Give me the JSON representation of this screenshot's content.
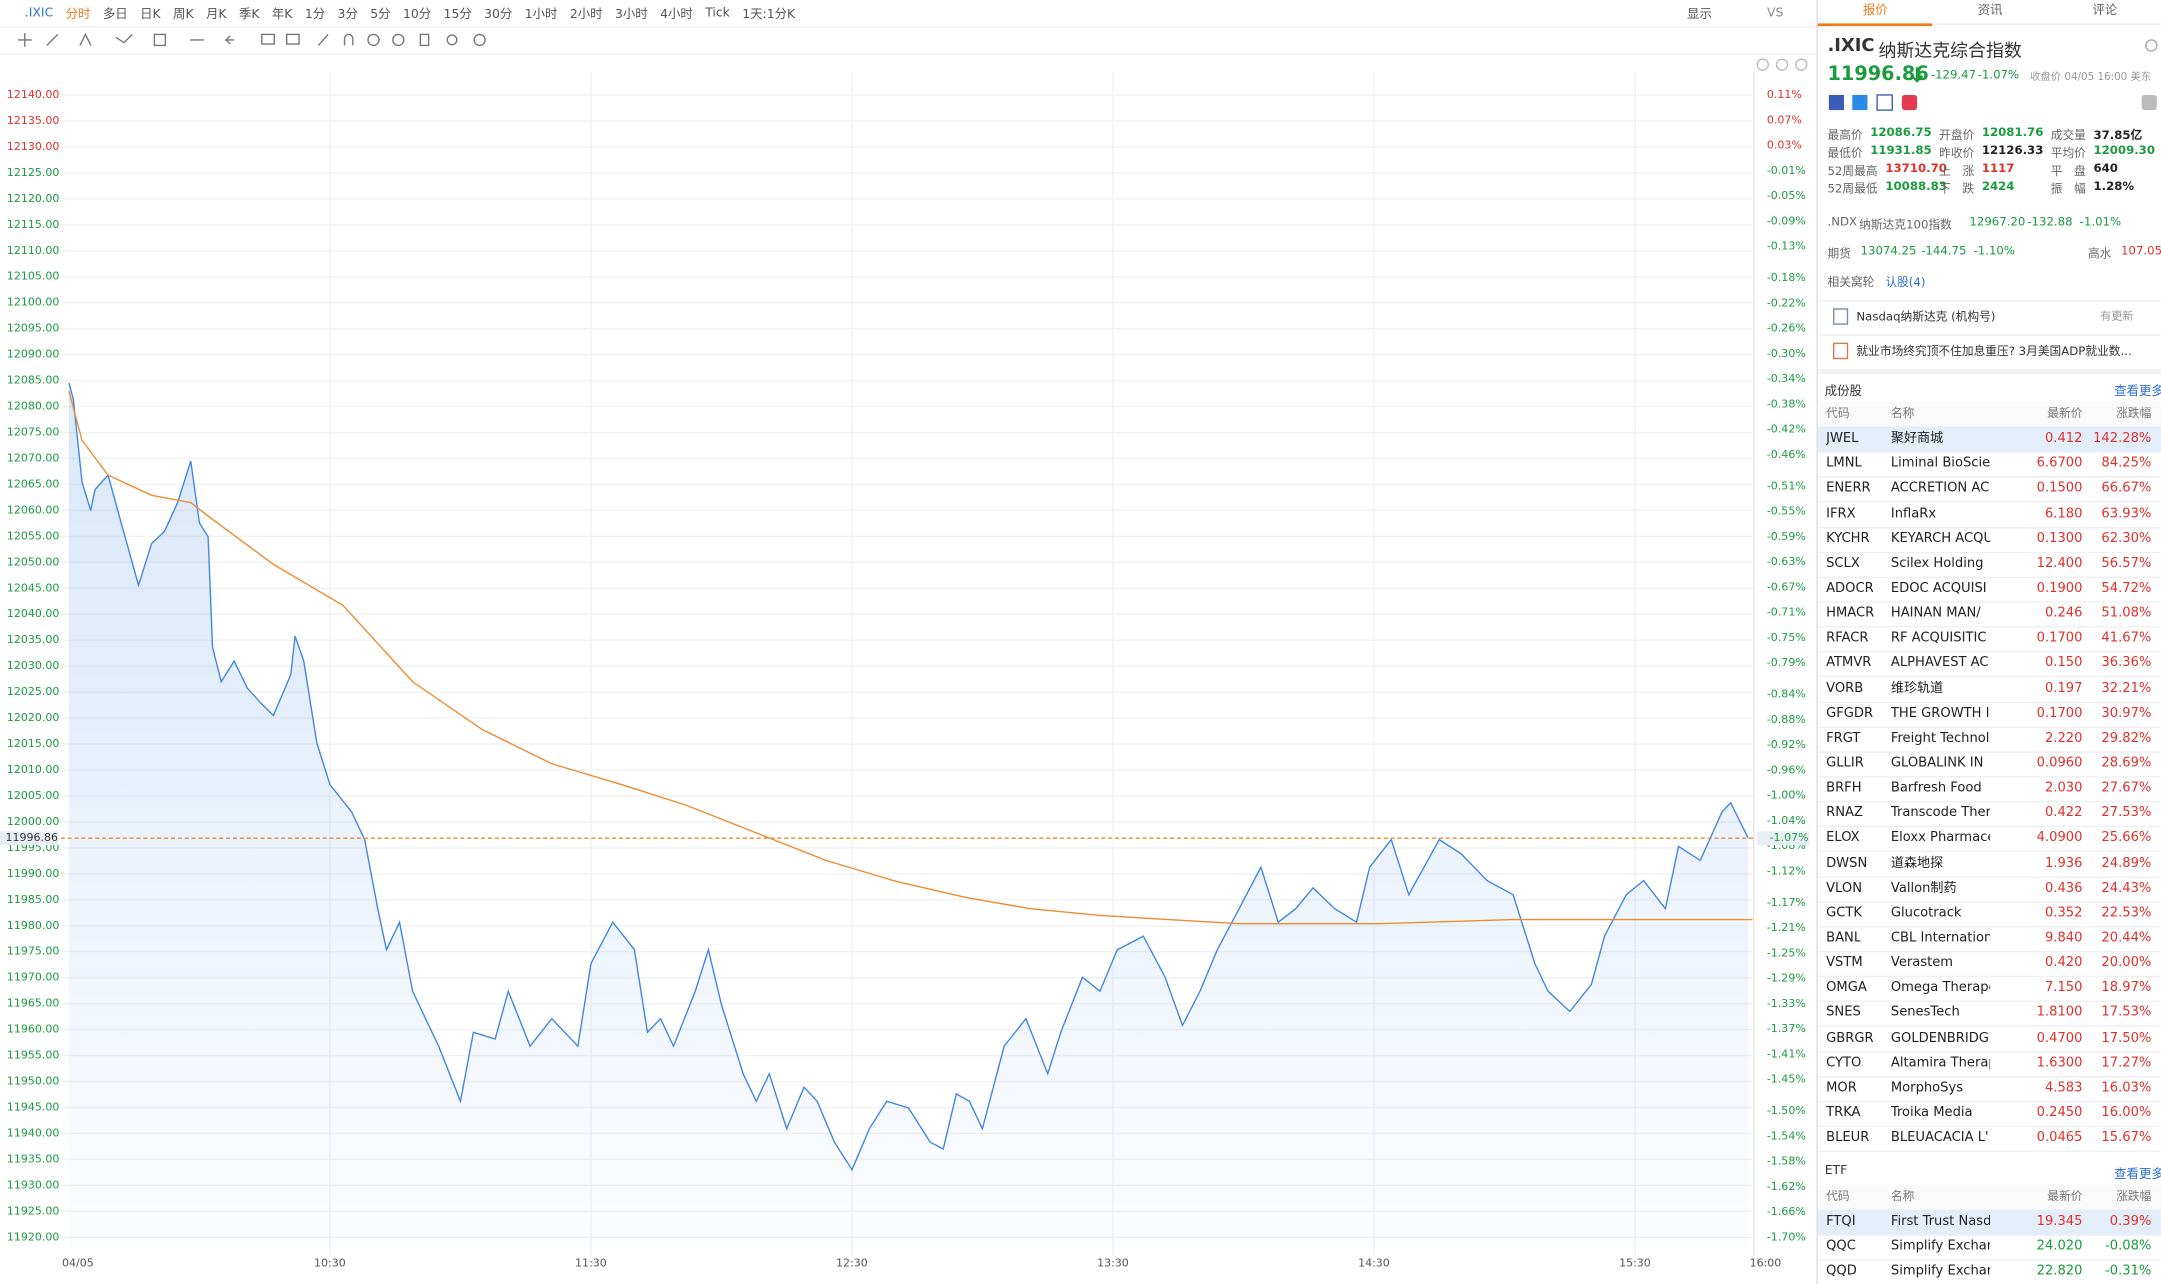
{
  "toolbar": {
    "symbol": ".IXIC",
    "periods": [
      "分时",
      "多日",
      "日K",
      "周K",
      "月K",
      "季K",
      "年K",
      "1分",
      "3分",
      "5分",
      "10分",
      "15分",
      "30分",
      "1小时",
      "2小时",
      "3小时",
      "4小时",
      "Tick"
    ],
    "active": 0,
    "kline_setting": "1天:1分K",
    "display": "显示",
    "vs": "VS"
  },
  "chart_data": {
    "type": "line",
    "xlim": [
      0,
      390
    ],
    "xticks": [
      {
        "value": 0,
        "label": "04/05"
      },
      {
        "value": 60,
        "label": "10:30"
      },
      {
        "value": 120,
        "label": "11:30"
      },
      {
        "value": 180,
        "label": "12:30"
      },
      {
        "value": 240,
        "label": "13:30"
      },
      {
        "value": 300,
        "label": "14:30"
      },
      {
        "value": 360,
        "label": "15:30"
      },
      {
        "value": 390,
        "label": "16:00"
      }
    ],
    "ylim": [
      11917.9,
      12142.4
    ],
    "yticks": [
      {
        "value": 12140,
        "label": "12140.00"
      },
      {
        "value": 12135,
        "label": "12135.00"
      },
      {
        "value": 12130,
        "label": "12130.00"
      },
      {
        "value": 12125,
        "label": "12125.00"
      },
      {
        "value": 12120,
        "label": "12120.00"
      },
      {
        "value": 12115,
        "label": "12115.00"
      },
      {
        "value": 12110,
        "label": "12110.00"
      },
      {
        "value": 12105,
        "label": "12105.00"
      },
      {
        "value": 12100,
        "label": "12100.00"
      },
      {
        "value": 12095,
        "label": "12095.00"
      },
      {
        "value": 12090,
        "label": "12090.00"
      },
      {
        "value": 12085,
        "label": "12085.00"
      },
      {
        "value": 12080,
        "label": "12080.00"
      },
      {
        "value": 12075,
        "label": "12075.00"
      },
      {
        "value": 12070,
        "label": "12070.00"
      },
      {
        "value": 12065,
        "label": "12065.00"
      },
      {
        "value": 12060,
        "label": "12060.00"
      },
      {
        "value": 12055,
        "label": "12055.00"
      },
      {
        "value": 12050,
        "label": "12050.00"
      },
      {
        "value": 12045,
        "label": "12045.00"
      },
      {
        "value": 12040,
        "label": "12040.00"
      },
      {
        "value": 12035,
        "label": "12035.00"
      },
      {
        "value": 12030,
        "label": "12030.00"
      },
      {
        "value": 12025,
        "label": "12025.00"
      },
      {
        "value": 12020,
        "label": "12020.00"
      },
      {
        "value": 12015,
        "label": "12015.00"
      },
      {
        "value": 12010,
        "label": "12010.00"
      },
      {
        "value": 12005,
        "label": "12005.00"
      },
      {
        "value": 12000,
        "label": "12000.00"
      },
      {
        "value": 11995,
        "label": "11995.00"
      },
      {
        "value": 11990,
        "label": "11990.00"
      },
      {
        "value": 11985,
        "label": "11985.00"
      },
      {
        "value": 11980,
        "label": "11980.00"
      },
      {
        "value": 11975,
        "label": "11975.00"
      },
      {
        "value": 11970,
        "label": "11970.00"
      },
      {
        "value": 11965,
        "label": "11965.00"
      },
      {
        "value": 11960,
        "label": "11960.00"
      },
      {
        "value": 11955,
        "label": "11955.00"
      },
      {
        "value": 11950,
        "label": "11950.00"
      },
      {
        "value": 11945,
        "label": "11945.00"
      },
      {
        "value": 11940,
        "label": "11940.00"
      },
      {
        "value": 11935,
        "label": "11935.00"
      },
      {
        "value": 11930,
        "label": "11930.00"
      },
      {
        "value": 11925,
        "label": "11925.00"
      },
      {
        "value": 11920,
        "label": "11920.00"
      }
    ],
    "y2lim": [
      -1.717,
      0.13
    ],
    "y2ticks": [
      {
        "value": 0.11,
        "label": "0.11%"
      },
      {
        "value": 0.07,
        "label": "0.07%"
      },
      {
        "value": 0.03,
        "label": "0.03%"
      },
      {
        "value": -0.01,
        "label": "-0.01%"
      },
      {
        "value": -0.05,
        "label": "-0.05%"
      },
      {
        "value": -0.09,
        "label": "-0.09%"
      },
      {
        "value": -0.13,
        "label": "-0.13%"
      },
      {
        "value": -0.18,
        "label": "-0.18%"
      },
      {
        "value": -0.22,
        "label": "-0.22%"
      },
      {
        "value": -0.26,
        "label": "-0.26%"
      },
      {
        "value": -0.3,
        "label": "-0.30%"
      },
      {
        "value": -0.34,
        "label": "-0.34%"
      },
      {
        "value": -0.38,
        "label": "-0.38%"
      },
      {
        "value": -0.42,
        "label": "-0.42%"
      },
      {
        "value": -0.46,
        "label": "-0.46%"
      },
      {
        "value": -0.51,
        "label": "-0.51%"
      },
      {
        "value": -0.55,
        "label": "-0.55%"
      },
      {
        "value": -0.59,
        "label": "-0.59%"
      },
      {
        "value": -0.63,
        "label": "-0.63%"
      },
      {
        "value": -0.67,
        "label": "-0.67%"
      },
      {
        "value": -0.71,
        "label": "-0.71%"
      },
      {
        "value": -0.75,
        "label": "-0.75%"
      },
      {
        "value": -0.79,
        "label": "-0.79%"
      },
      {
        "value": -0.84,
        "label": "-0.84%"
      },
      {
        "value": -0.88,
        "label": "-0.88%"
      },
      {
        "value": -0.92,
        "label": "-0.92%"
      },
      {
        "value": -0.96,
        "label": "-0.96%"
      },
      {
        "value": -1.0,
        "label": "-1.00%"
      },
      {
        "value": -1.04,
        "label": "-1.04%"
      },
      {
        "value": -1.08,
        "label": "-1.08%"
      },
      {
        "value": -1.12,
        "label": "-1.12%"
      },
      {
        "value": -1.17,
        "label": "-1.17%"
      },
      {
        "value": -1.21,
        "label": "-1.21%"
      },
      {
        "value": -1.25,
        "label": "-1.25%"
      },
      {
        "value": -1.29,
        "label": "-1.29%"
      },
      {
        "value": -1.33,
        "label": "-1.33%"
      },
      {
        "value": -1.37,
        "label": "-1.37%"
      },
      {
        "value": -1.41,
        "label": "-1.41%"
      },
      {
        "value": -1.45,
        "label": "-1.45%"
      },
      {
        "value": -1.5,
        "label": "-1.50%"
      },
      {
        "value": -1.54,
        "label": "-1.54%"
      },
      {
        "value": -1.58,
        "label": "-1.58%"
      },
      {
        "value": -1.62,
        "label": "-1.62%"
      },
      {
        "value": -1.66,
        "label": "-1.66%"
      },
      {
        "value": -1.7,
        "label": "-1.70%"
      }
    ],
    "grid": true,
    "series": [
      {
        "color": "#3f86e3",
        "fill": true,
        "x": [
          0,
          1,
          3,
          5,
          6,
          9,
          12,
          16,
          19,
          22,
          25,
          28,
          30,
          32,
          33,
          35,
          38,
          41,
          44,
          47,
          51,
          52,
          54,
          57,
          60,
          65,
          68,
          71,
          73,
          76,
          79,
          82,
          85,
          90,
          93,
          98,
          101,
          106,
          111,
          117,
          120,
          125,
          130,
          133,
          136,
          139,
          144,
          147,
          150,
          155,
          158,
          161,
          165,
          169,
          172,
          176,
          180,
          184,
          188,
          193,
          198,
          201,
          204,
          207,
          210,
          215,
          220,
          225,
          228,
          233,
          237,
          241,
          247,
          252,
          256,
          260,
          264,
          269,
          274,
          278,
          282,
          286,
          291,
          296,
          299,
          304,
          308,
          315,
          320,
          326,
          332,
          337,
          340,
          345,
          350,
          353,
          358,
          362,
          367,
          370,
          375,
          380,
          382,
          386
        ],
        "values": [
          12084.6,
          12081.4,
          12065.5,
          12060.0,
          12064.0,
          12066.8,
          12057.6,
          12045.6,
          12053.6,
          12056.0,
          12061.5,
          12069.5,
          12057.6,
          12054.9,
          12033.7,
          12027.0,
          12031.0,
          12025.8,
          12023.0,
          12020.5,
          12028.4,
          12035.8,
          12031.0,
          12015.2,
          12007.2,
          12001.9,
          11996.6,
          11983.3,
          11975.4,
          11980.7,
          11967.4,
          11962.1,
          11956.8,
          11946.2,
          11959.5,
          11958.2,
          11967.4,
          11956.8,
          11962.1,
          11956.8,
          11972.7,
          11980.7,
          11975.4,
          11959.5,
          11962.1,
          11956.8,
          11967.4,
          11975.4,
          11964.8,
          11951.5,
          11946.2,
          11951.5,
          11940.9,
          11948.9,
          11946.2,
          11938.3,
          11933.0,
          11940.9,
          11946.2,
          11944.9,
          11938.3,
          11937.0,
          11947.6,
          11946.2,
          11940.9,
          11956.8,
          11962.1,
          11951.5,
          11959.5,
          11970.1,
          11967.4,
          11975.4,
          11978.0,
          11970.1,
          11960.8,
          11967.4,
          11975.4,
          11983.3,
          11991.3,
          11980.7,
          11983.3,
          11987.3,
          11983.3,
          11980.7,
          11991.3,
          11996.6,
          11986.0,
          11996.6,
          11993.9,
          11988.7,
          11986.0,
          11972.7,
          11967.4,
          11963.5,
          11968.7,
          11978.0,
          11986.0,
          11988.7,
          11983.3,
          11995.3,
          11992.6,
          12001.9,
          12003.7,
          11996.9
        ]
      },
      {
        "color": "#f08a2e",
        "fill": false,
        "x": [
          0,
          3,
          9,
          19,
          28,
          32,
          47,
          63,
          79,
          95,
          111,
          127,
          142,
          158,
          174,
          190,
          206,
          221,
          237,
          269,
          301,
          332,
          387
        ],
        "values": [
          12083.0,
          12073.5,
          12066.8,
          12062.9,
          12061.5,
          12058.9,
          12049.6,
          12041.7,
          12027.0,
          12017.8,
          12011.2,
          12007.2,
          12003.2,
          11997.9,
          11992.6,
          11988.6,
          11985.5,
          11983.3,
          11982.0,
          11980.4,
          11980.4,
          11981.2,
          11981.2
        ]
      }
    ],
    "price_line": 11996.86,
    "price_line_pct": "-1.07%"
  },
  "quote": {
    "tabs": [
      "报价",
      "资讯",
      "评论"
    ],
    "active": 0,
    "code": ".IXIC",
    "name": "纳斯达克综合指数",
    "price": "11996.86",
    "change": "-129.47",
    "change_pct": "-1.07%",
    "status": "收盘价 04/05 16:00 美东",
    "stats": [
      {
        "label": "最高价",
        "value": "12086.75",
        "color": "green"
      },
      {
        "label": "开盘价",
        "value": "12081.76",
        "color": "green"
      },
      {
        "label": "成交量",
        "value": "37.85亿",
        "color": "black"
      },
      {
        "label": "最低价",
        "value": "11931.85",
        "color": "green"
      },
      {
        "label": "昨收价",
        "value": "12126.33",
        "color": "black"
      },
      {
        "label": "平均价",
        "value": "12009.30",
        "color": "green"
      },
      {
        "label": "52周最高",
        "value": "13710.70",
        "color": "red"
      },
      {
        "label": "上　涨",
        "value": "1117",
        "color": "red"
      },
      {
        "label": "平　盘",
        "value": "640",
        "color": "black"
      },
      {
        "label": "52周最低",
        "value": "10088.83",
        "color": "green"
      },
      {
        "label": "下　跌",
        "value": "2424",
        "color": "green"
      },
      {
        "label": "振　幅",
        "value": "1.28%",
        "color": "black"
      }
    ],
    "ndx": {
      "code": ".NDX",
      "name": "纳斯达克100指数",
      "price": "12967.20",
      "change": "-132.88",
      "change_pct": "-1.01%"
    },
    "futures": {
      "label": "期货",
      "price": "13074.25",
      "change": "-144.75",
      "change_pct": "-1.10%",
      "premium_label": "高水",
      "premium": "107.05"
    },
    "warrants": {
      "label": "相关窝轮",
      "link": "认股(4)"
    },
    "news": [
      {
        "text": "Nasdaq纳斯达克 (机构号)",
        "tag": "有更新"
      },
      {
        "text": "就业市场终究顶不住加息重压? 3月美国ADP就业数..."
      }
    ]
  },
  "constituents": {
    "title": "成份股",
    "more": "查看更多",
    "columns": [
      "代码",
      "名称",
      "最新价",
      "涨跌幅"
    ],
    "selected": 0,
    "rows": [
      [
        "JWEL",
        "聚好商城",
        "0.412",
        "142.28%"
      ],
      [
        "LMNL",
        "Liminal BioScier",
        "6.6700",
        "84.25%"
      ],
      [
        "ENERR",
        "ACCRETION AC",
        "0.1500",
        "66.67%"
      ],
      [
        "IFRX",
        "InflaRx",
        "6.180",
        "63.93%"
      ],
      [
        "KYCHR",
        "KEYARCH ACQU",
        "0.1300",
        "62.30%"
      ],
      [
        "SCLX",
        "Scilex Holding",
        "12.400",
        "56.57%"
      ],
      [
        "ADOCR",
        "EDOC ACQUISI",
        "0.1900",
        "54.72%"
      ],
      [
        "HMACR",
        "HAINAN MAN/",
        "0.246",
        "51.08%"
      ],
      [
        "RFACR",
        "RF ACQUISITIC",
        "0.1700",
        "41.67%"
      ],
      [
        "ATMVR",
        "ALPHAVEST AC",
        "0.150",
        "36.36%"
      ],
      [
        "VORB",
        "维珍轨道",
        "0.197",
        "32.21%"
      ],
      [
        "GFGDR",
        "THE GROWTH I",
        "0.1700",
        "30.97%"
      ],
      [
        "FRGT",
        "Freight Technol",
        "2.220",
        "29.82%"
      ],
      [
        "GLLIR",
        "GLOBALINK IN",
        "0.0960",
        "28.69%"
      ],
      [
        "BRFH",
        "Barfresh Food",
        "2.030",
        "27.67%"
      ],
      [
        "RNAZ",
        "Transcode Ther",
        "0.422",
        "27.53%"
      ],
      [
        "ELOX",
        "Eloxx Pharmace",
        "4.0900",
        "25.66%"
      ],
      [
        "DWSN",
        "道森地探",
        "1.936",
        "24.89%"
      ],
      [
        "VLON",
        "Vallon制药",
        "0.436",
        "24.43%"
      ],
      [
        "GCTK",
        "Glucotrack",
        "0.352",
        "22.53%"
      ],
      [
        "BANL",
        "CBL Internation",
        "9.840",
        "20.44%"
      ],
      [
        "VSTM",
        "Verastem",
        "0.420",
        "20.00%"
      ],
      [
        "OMGA",
        "Omega Therape",
        "7.150",
        "18.97%"
      ],
      [
        "SNES",
        "SenesTech",
        "1.8100",
        "17.53%"
      ],
      [
        "GBRGR",
        "GOLDENBRIDG",
        "0.4700",
        "17.50%"
      ],
      [
        "CYTO",
        "Altamira Therap",
        "1.6300",
        "17.27%"
      ],
      [
        "MOR",
        "MorphoSys",
        "4.583",
        "16.03%"
      ],
      [
        "TRKA",
        "Troika Media",
        "0.2450",
        "16.00%"
      ],
      [
        "BLEUR",
        "BLEUACACIA L'",
        "0.0465",
        "15.67%"
      ]
    ]
  },
  "etf": {
    "title": "ETF",
    "more": "查看更多",
    "columns": [
      "代码",
      "名称",
      "最新价",
      "涨跌幅"
    ],
    "selected": 0,
    "rows": [
      [
        "FTQI",
        "First Trust Nasda",
        "19.345",
        "0.39%"
      ],
      [
        "QQC",
        "Simplify Exchange",
        "24.020",
        "-0.08%"
      ],
      [
        "QQD",
        "Simplify Exchange",
        "22.820",
        "-0.31%"
      ]
    ]
  }
}
